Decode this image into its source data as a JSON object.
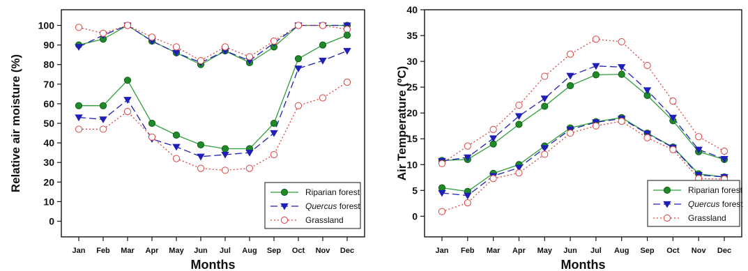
{
  "chart_data": [
    {
      "type": "line",
      "categories": [
        "Jan",
        "Feb",
        "Mar",
        "Apr",
        "May",
        "Jun",
        "Jul",
        "Aug",
        "Sep",
        "Oct",
        "Nov",
        "Dec"
      ],
      "xlabel": "Months",
      "ylabel": "Relative air moisture (%)",
      "ylim": [
        -8,
        108
      ],
      "yticks": [
        0,
        10,
        20,
        30,
        40,
        50,
        60,
        70,
        80,
        90,
        100
      ],
      "grid": false,
      "legend_position": "bottom-right",
      "legend": [
        {
          "label": "Riparian forest",
          "style": "riparian"
        },
        {
          "label": "Quercus forest",
          "italic_part": "Quercus",
          "rest": " forest",
          "style": "quercus"
        },
        {
          "label": "Grassland",
          "style": "grassland"
        }
      ],
      "series": [
        {
          "style": "riparian",
          "group": "max",
          "values": [
            90,
            93,
            100,
            92,
            86,
            80,
            87,
            81,
            89,
            100,
            100,
            100
          ]
        },
        {
          "style": "quercus",
          "group": "max",
          "values": [
            89,
            95,
            100,
            92,
            86,
            81,
            87,
            82,
            91,
            100,
            100,
            100
          ]
        },
        {
          "style": "grassland",
          "group": "max",
          "values": [
            99,
            96,
            100,
            94,
            89,
            82,
            89,
            84,
            92,
            100,
            100,
            98
          ]
        },
        {
          "style": "riparian",
          "group": "min",
          "values": [
            59,
            59,
            72,
            50,
            44,
            39,
            37,
            37,
            50,
            83,
            90,
            95
          ]
        },
        {
          "style": "quercus",
          "group": "min",
          "values": [
            53,
            52,
            62,
            42,
            38,
            33,
            34,
            35,
            45,
            78,
            82,
            87
          ]
        },
        {
          "style": "grassland",
          "group": "min",
          "values": [
            47,
            47,
            56,
            43,
            32,
            27,
            26,
            27,
            34,
            59,
            63,
            71
          ]
        }
      ]
    },
    {
      "type": "line",
      "categories": [
        "Jan",
        "Feb",
        "Mar",
        "Apr",
        "May",
        "Jun",
        "Jul",
        "Aug",
        "Sep",
        "Oct",
        "Nov",
        "Dec"
      ],
      "xlabel": "Months",
      "ylabel": "Air Temperature (ºC)",
      "ylim": [
        -4,
        40
      ],
      "yticks": [
        0,
        5,
        10,
        15,
        20,
        25,
        30,
        35,
        40
      ],
      "grid": false,
      "legend_position": "bottom-right",
      "legend": [
        {
          "label": "Riparian forest",
          "style": "riparian"
        },
        {
          "label": "Quercus forest",
          "italic_part": "Quercus",
          "rest": " forest",
          "style": "quercus"
        },
        {
          "label": "Grassland",
          "style": "grassland"
        }
      ],
      "series": [
        {
          "style": "riparian",
          "group": "max",
          "values": [
            10.8,
            11,
            14,
            17.8,
            21.3,
            25.3,
            27.4,
            27.5,
            23.4,
            18.5,
            12.5,
            11
          ]
        },
        {
          "style": "quercus",
          "group": "max",
          "values": [
            10.7,
            11.4,
            15.1,
            19.4,
            22.8,
            27.2,
            29.1,
            28.9,
            24.4,
            19.1,
            12.9,
            11.1
          ]
        },
        {
          "style": "grassland",
          "group": "max",
          "values": [
            10.2,
            13.6,
            16.8,
            21.5,
            27.1,
            31.4,
            34.3,
            33.8,
            29.2,
            22.3,
            15.4,
            12.6
          ]
        },
        {
          "style": "riparian",
          "group": "min",
          "values": [
            5.5,
            4.8,
            8.3,
            10,
            13.6,
            17.1,
            18.3,
            19.1,
            16.1,
            13.4,
            8.2,
            7.6
          ]
        },
        {
          "style": "quercus",
          "group": "min",
          "values": [
            4.5,
            4,
            7.8,
            9.4,
            13.2,
            16.8,
            18.2,
            18.9,
            16,
            13.3,
            8,
            7.6
          ]
        },
        {
          "style": "grassland",
          "group": "min",
          "values": [
            0.9,
            2.6,
            7.3,
            8.4,
            12,
            16.1,
            17.5,
            18.4,
            15.2,
            12.9,
            7.3,
            7.2
          ]
        }
      ]
    }
  ],
  "colors": {
    "riparian_line": "#2e9e3a",
    "riparian_marker": "#1f8a28",
    "quercus": "#1f1fb8",
    "grassland": "#e04040"
  }
}
